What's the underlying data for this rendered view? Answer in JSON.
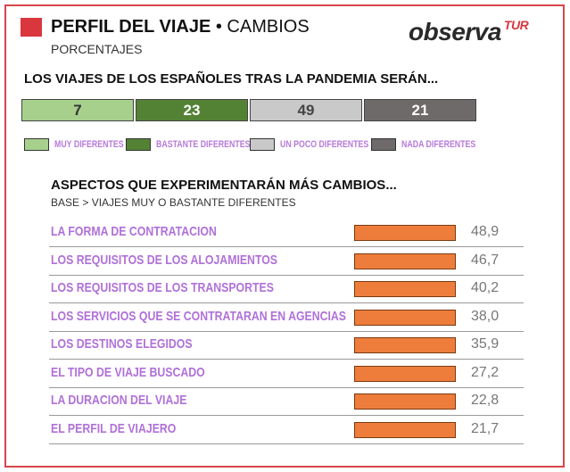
{
  "header": {
    "title_bold": "PERFIL DEL VIAJE",
    "title_rest": "• CAMBIOS",
    "subtitle": "PORCENTAJES",
    "logo_main": "observa",
    "logo_suffix": "TUR"
  },
  "chart_data": [
    {
      "type": "bar",
      "title": "LOS VIAJES DE LOS ESPAÑOLES TRAS LA PANDEMIA SERÁN...",
      "categories": [
        "MUY DIFERENTES",
        "BASTANTE DIFERENTES",
        "UN POCO DIFERENTES",
        "NADA DIFERENTES"
      ],
      "values": [
        7,
        23,
        49,
        21
      ],
      "colors": [
        "#a8d08d",
        "#548235",
        "#c9c9c9",
        "#6f6a6a"
      ],
      "text_colors": [
        "#333333",
        "#ffffff",
        "#444444",
        "#ffffff"
      ],
      "legend": "bottom"
    },
    {
      "type": "bar",
      "title": "ASPECTOS QUE EXPERIMENTARÁN MÁS CAMBIOS...",
      "subtitle": "BASE > VIAJES MUY O BASTANTE DIFERENTES",
      "categories": [
        "LA FORMA DE CONTRATACION",
        "LOS REQUISITOS DE LOS ALOJAMIENTOS",
        "LOS REQUISITOS DE LOS TRANSPORTES",
        "LOS SERVICIOS QUE SE CONTRATARAN EN AGENCIAS",
        "LOS DESTINOS ELEGIDOS",
        "EL TIPO DE VIAJE BUSCADO",
        "LA DURACION DEL VIAJE",
        "EL PERFIL DE VIAJERO"
      ],
      "values": [
        48.9,
        46.7,
        40.2,
        38.0,
        35.9,
        27.2,
        22.8,
        21.7
      ],
      "labels": [
        "48,9",
        "46,7",
        "40,2",
        "38,0",
        "35,9",
        "27,2",
        "22,8",
        "21,7"
      ],
      "color": "#ee7d3b"
    }
  ]
}
